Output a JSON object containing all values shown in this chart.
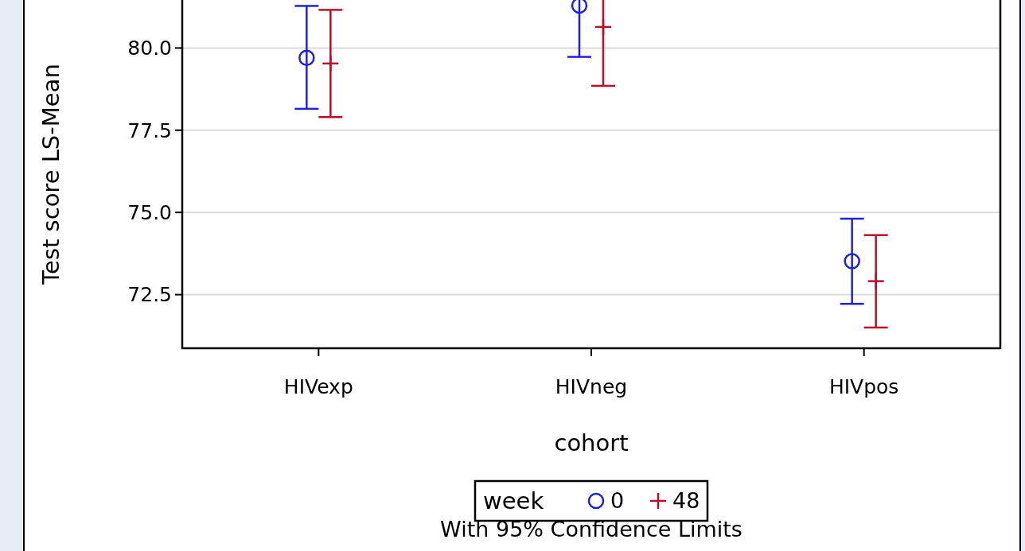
{
  "chart_data": {
    "type": "scatter",
    "ylabel": "Test score LS-Mean",
    "xlabel": "cohort",
    "legend_title": "week",
    "annotations": [
      "With 95% Confidence Limits"
    ],
    "categories": [
      "HIVexp",
      "HIVneg",
      "HIVpos"
    ],
    "ylim": [
      70.87,
      81.46
    ],
    "yticks": [
      {
        "value": 72.5,
        "label": "72.5"
      },
      {
        "value": 75,
        "label": "75.0"
      },
      {
        "value": 77.5,
        "label": "77.5"
      },
      {
        "value": 80,
        "label": "80.0"
      }
    ],
    "grid": "y",
    "legend": "bottom",
    "series": [
      {
        "name": "0",
        "color": "#2020e0",
        "marker": "circle",
        "values": [
          79.7,
          81.29,
          73.52
        ],
        "errors": [
          [
            78.15,
            81.28
          ],
          [
            79.73,
            81.46
          ],
          [
            72.22,
            74.81
          ]
        ]
      },
      {
        "name": "48",
        "color": "#b8102c",
        "marker": "cross",
        "values": [
          79.53,
          80.64,
          72.91
        ],
        "errors": [
          [
            77.9,
            81.16
          ],
          [
            78.85,
            81.46
          ],
          [
            71.5,
            74.31
          ]
        ]
      }
    ]
  }
}
